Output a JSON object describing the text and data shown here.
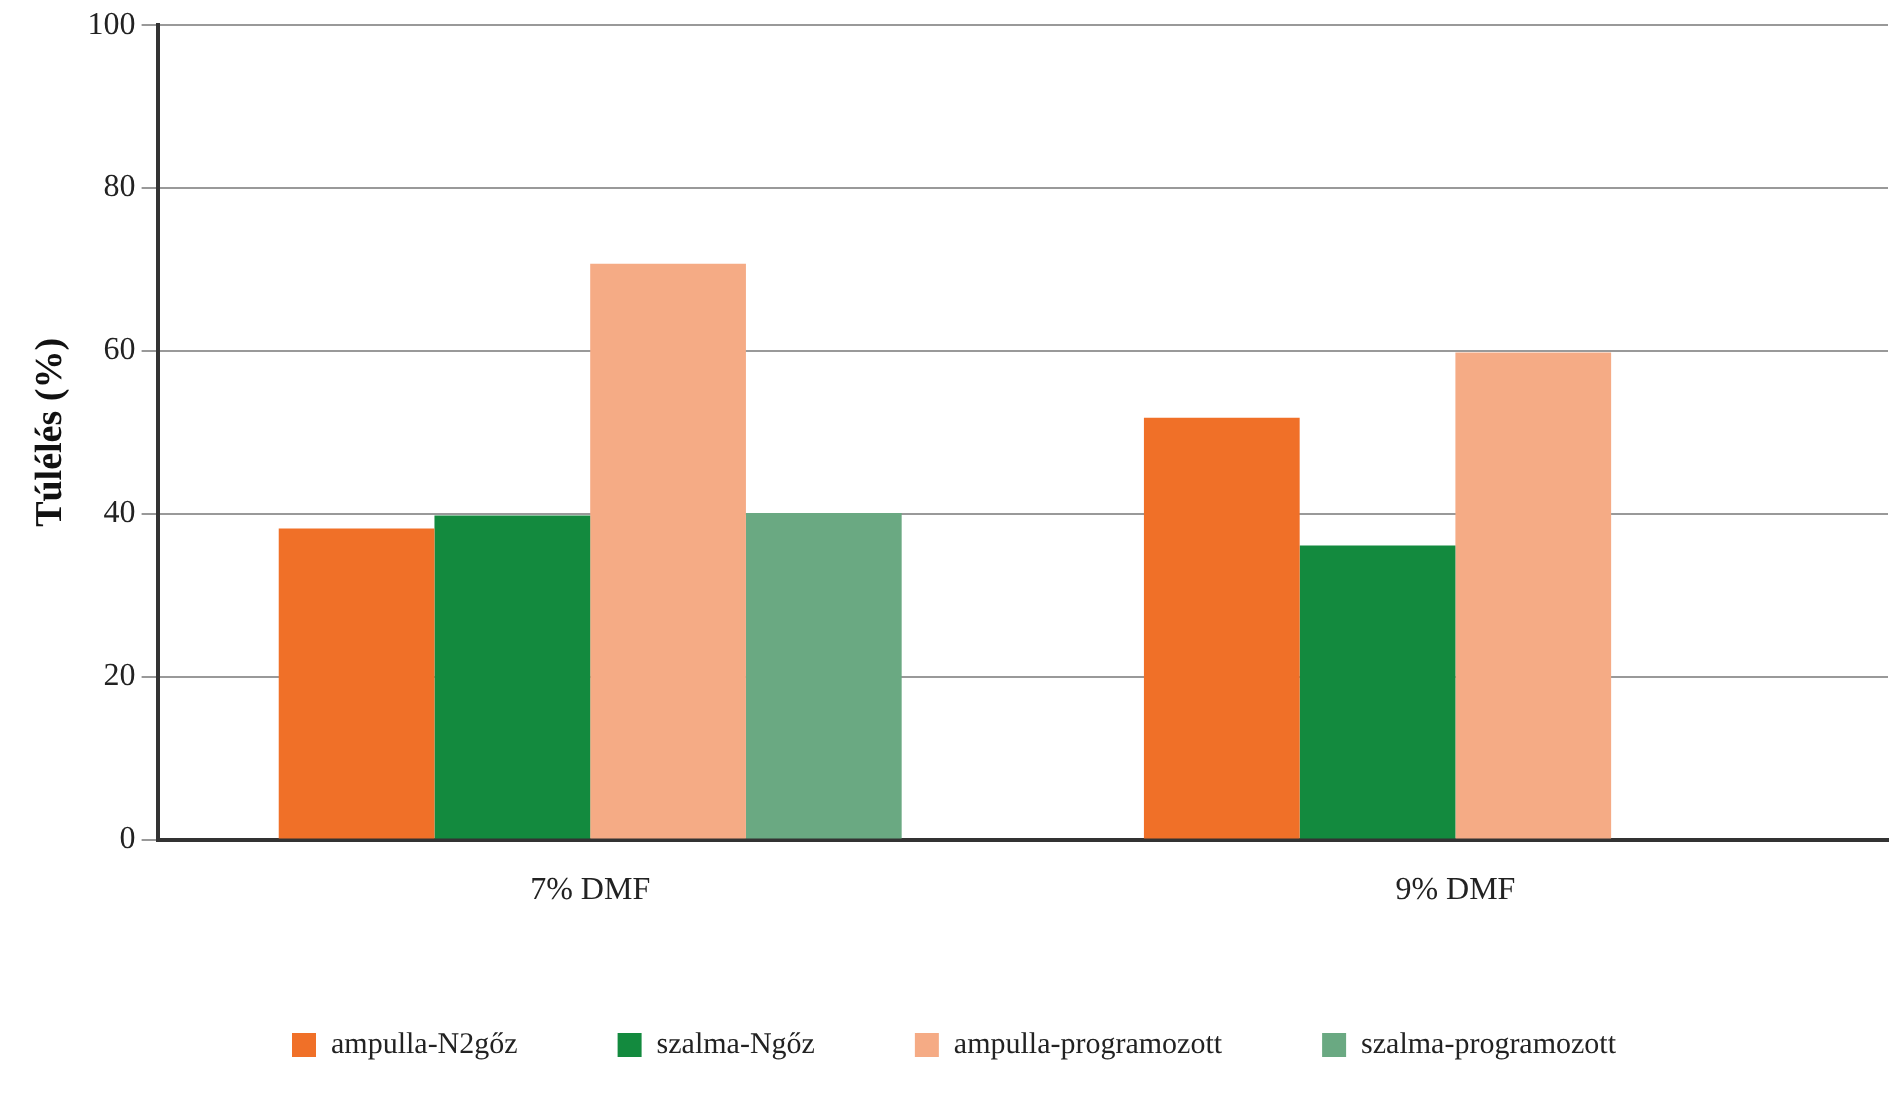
{
  "chart_data": {
    "type": "bar",
    "ylabel": "Túlélés (%)",
    "categories": [
      "7% DMF",
      "9% DMF"
    ],
    "series": [
      {
        "name": "ampulla-N2gőz",
        "color": "#f07028",
        "values": [
          38.2,
          51.8
        ]
      },
      {
        "name": "szalma-Ngőz",
        "color": "#138a3e",
        "values": [
          39.8,
          36.1
        ]
      },
      {
        "name": "ampulla-programozott",
        "color": "#f5ab85",
        "values": [
          70.7,
          59.8
        ]
      },
      {
        "name": "szalma-programozott",
        "color": "#6aa982",
        "values": [
          40.1,
          null
        ]
      }
    ],
    "ylim": [
      0,
      100
    ],
    "yticks": [
      0,
      20,
      40,
      60,
      80,
      100
    ],
    "grid": "y",
    "legend": "bottom"
  }
}
